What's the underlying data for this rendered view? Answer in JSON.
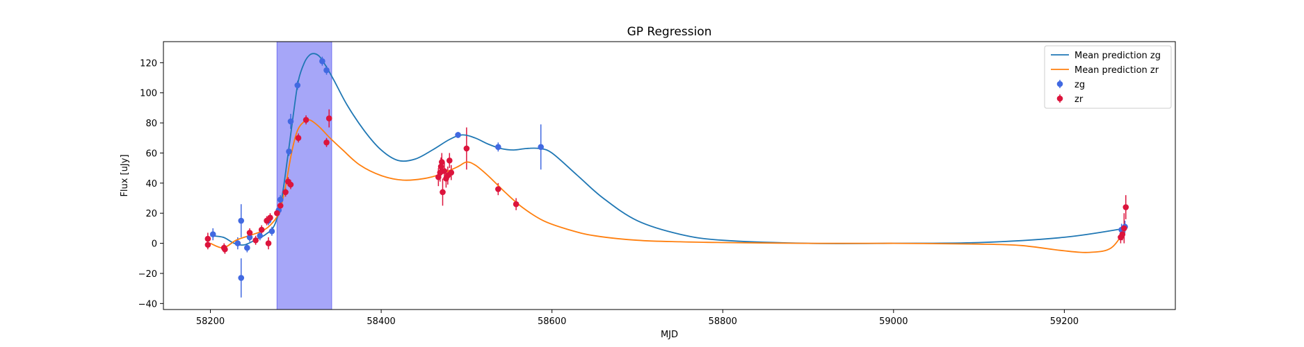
{
  "chart_data": {
    "type": "scatter",
    "title": "GP Regression",
    "xlabel": "MJD",
    "ylabel": "Flux [uJy]",
    "xlim": [
      58145,
      59330
    ],
    "ylim": [
      -44,
      134
    ],
    "xticks": [
      58200,
      58400,
      58600,
      58800,
      59000,
      59200
    ],
    "yticks": [
      -40,
      -20,
      0,
      20,
      40,
      60,
      80,
      100,
      120
    ],
    "grid": false,
    "legend_position": "upper right",
    "shaded_region": {
      "x_start": 58278,
      "x_end": 58342,
      "color": "#a6a6f8"
    },
    "lines": [
      {
        "name": "Mean prediction zg",
        "color": "#1f77b4",
        "x": [
          58200,
          58215,
          58228,
          58240,
          58255,
          58265,
          58275,
          58283,
          58290,
          58297,
          58303,
          58310,
          58316,
          58322,
          58328,
          58335,
          58345,
          58360,
          58380,
          58400,
          58420,
          58440,
          58460,
          58480,
          58495,
          58510,
          58525,
          58540,
          58555,
          58570,
          58585,
          58600,
          58630,
          58660,
          58700,
          58750,
          58800,
          58900,
          59000,
          59100,
          59200,
          59272
        ],
        "y": [
          5,
          4,
          0,
          -1,
          3,
          6,
          12,
          28,
          55,
          85,
          108,
          120,
          125,
          126,
          124,
          118,
          108,
          92,
          75,
          62,
          55,
          56,
          62,
          69,
          72,
          70,
          66,
          63,
          62,
          63,
          63,
          60,
          45,
          30,
          15,
          6,
          2,
          0,
          0,
          0.5,
          4,
          10
        ]
      },
      {
        "name": "Mean prediction zr",
        "color": "#ff7f0e",
        "x": [
          58200,
          58215,
          58230,
          58245,
          58260,
          58270,
          58280,
          58287,
          58295,
          58302,
          58310,
          58316,
          58322,
          58330,
          58340,
          58355,
          58375,
          58400,
          58425,
          58450,
          58470,
          58490,
          58500,
          58510,
          58525,
          58545,
          58565,
          58590,
          58620,
          58650,
          58700,
          58750,
          58800,
          58900,
          59000,
          59100,
          59150,
          59200,
          59230,
          59255,
          59272
        ],
        "y": [
          0,
          -3,
          2,
          5,
          8,
          12,
          20,
          35,
          60,
          75,
          81,
          82,
          80,
          76,
          70,
          62,
          52,
          45,
          42,
          43,
          46,
          51,
          54,
          52,
          45,
          34,
          24,
          15,
          9,
          5,
          2,
          1,
          0.5,
          0,
          0,
          -0.5,
          -1.5,
          -5,
          -6,
          -3,
          10
        ]
      }
    ],
    "series": [
      {
        "name": "zg",
        "color": "#4169e1",
        "points": [
          {
            "x": 58203,
            "y": 6,
            "err": 4
          },
          {
            "x": 58232,
            "y": 0,
            "err": 4
          },
          {
            "x": 58236,
            "y": 15,
            "err": 11
          },
          {
            "x": 58236,
            "y": -23,
            "err": 13
          },
          {
            "x": 58243,
            "y": -3,
            "err": 3
          },
          {
            "x": 58246,
            "y": 4,
            "err": 3
          },
          {
            "x": 58258,
            "y": 5,
            "err": 3
          },
          {
            "x": 58268,
            "y": 15,
            "err": 3
          },
          {
            "x": 58272,
            "y": 8,
            "err": 3
          },
          {
            "x": 58280,
            "y": 22,
            "err": 3
          },
          {
            "x": 58282,
            "y": 29,
            "err": 3
          },
          {
            "x": 58292,
            "y": 61,
            "err": 3
          },
          {
            "x": 58294,
            "y": 81,
            "err": 5
          },
          {
            "x": 58302,
            "y": 105,
            "err": 3
          },
          {
            "x": 58331,
            "y": 121,
            "err": 3
          },
          {
            "x": 58336,
            "y": 115,
            "err": 3
          },
          {
            "x": 58490,
            "y": 72,
            "err": 2
          },
          {
            "x": 58537,
            "y": 64,
            "err": 3
          },
          {
            "x": 58587,
            "y": 64,
            "err": 15
          },
          {
            "x": 59267,
            "y": 9,
            "err": 4
          },
          {
            "x": 59271,
            "y": 11,
            "err": 4
          }
        ]
      },
      {
        "name": "zr",
        "color": "#dc143c",
        "points": [
          {
            "x": 58197,
            "y": 3,
            "err": 4
          },
          {
            "x": 58197,
            "y": -1,
            "err": 3
          },
          {
            "x": 58216,
            "y": -3,
            "err": 3
          },
          {
            "x": 58217,
            "y": -4,
            "err": 3
          },
          {
            "x": 58246,
            "y": 7,
            "err": 3
          },
          {
            "x": 58253,
            "y": 2,
            "err": 3
          },
          {
            "x": 58260,
            "y": 9,
            "err": 3
          },
          {
            "x": 58266,
            "y": 15,
            "err": 3
          },
          {
            "x": 58268,
            "y": 0,
            "err": 4
          },
          {
            "x": 58270,
            "y": 17,
            "err": 3
          },
          {
            "x": 58278,
            "y": 20,
            "err": 3
          },
          {
            "x": 58282,
            "y": 25,
            "err": 3
          },
          {
            "x": 58288,
            "y": 34,
            "err": 3
          },
          {
            "x": 58291,
            "y": 41,
            "err": 3
          },
          {
            "x": 58294,
            "y": 39,
            "err": 3
          },
          {
            "x": 58303,
            "y": 70,
            "err": 3
          },
          {
            "x": 58312,
            "y": 82,
            "err": 3
          },
          {
            "x": 58336,
            "y": 67,
            "err": 3
          },
          {
            "x": 58339,
            "y": 83,
            "err": 6
          },
          {
            "x": 58467,
            "y": 44,
            "err": 6
          },
          {
            "x": 58469,
            "y": 47,
            "err": 6
          },
          {
            "x": 58470,
            "y": 51,
            "err": 6
          },
          {
            "x": 58471,
            "y": 54,
            "err": 6
          },
          {
            "x": 58472,
            "y": 34,
            "err": 9
          },
          {
            "x": 58474,
            "y": 48,
            "err": 6
          },
          {
            "x": 58476,
            "y": 43,
            "err": 6
          },
          {
            "x": 58478,
            "y": 45,
            "err": 6
          },
          {
            "x": 58480,
            "y": 55,
            "err": 5
          },
          {
            "x": 58482,
            "y": 47,
            "err": 5
          },
          {
            "x": 58500,
            "y": 63,
            "err": 14
          },
          {
            "x": 58537,
            "y": 36,
            "err": 4
          },
          {
            "x": 58558,
            "y": 26,
            "err": 4
          },
          {
            "x": 59266,
            "y": 4,
            "err": 4
          },
          {
            "x": 59268,
            "y": 6,
            "err": 4
          },
          {
            "x": 59270,
            "y": 10,
            "err": 10
          },
          {
            "x": 59272,
            "y": 24,
            "err": 8
          }
        ]
      }
    ]
  }
}
